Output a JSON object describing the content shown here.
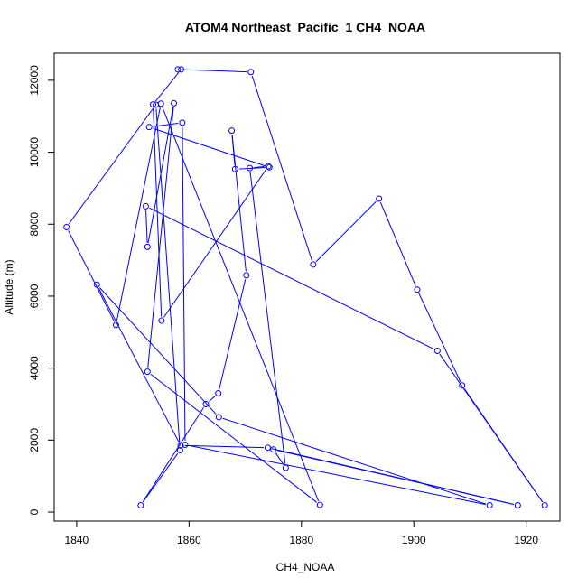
{
  "chart_data": {
    "type": "line",
    "title": "ATOM4 Northeast_Pacific_1 CH4_NOAA",
    "xlabel": "CH4_NOAA",
    "ylabel": "Altitude (m)",
    "xlim": [
      1836,
      1926
    ],
    "ylim": [
      -250,
      12750
    ],
    "x_ticks": [
      1840,
      1860,
      1880,
      1900,
      1920
    ],
    "y_ticks": [
      0,
      2000,
      4000,
      6000,
      8000,
      10000,
      12000
    ],
    "grid": false,
    "legend": "none",
    "series_color": "#0000ff",
    "marker": "open-circle",
    "series": [
      {
        "x": [
          1858.0,
          1871.0,
          1882.1,
          1893.8,
          1900.6,
          1908.6,
          1923.3,
          1904.2,
          1852.3,
          1852.6,
          1857.3,
          1852.6,
          1883.3,
          1855.0,
          1847.0,
          1838.2,
          1854.1,
          1858.4,
          1851.4,
          1863.0,
          1865.2,
          1870.2,
          1867.6,
          1868.2,
          1874.3,
          1852.9,
          1858.8,
          1859.3,
          1913.5,
          1865.3,
          1843.6,
          1858.5,
          1874.0,
          1918.5,
          1875.0,
          1877.2,
          1870.8,
          1874.1,
          1855.1,
          1853.6,
          1858.6
        ],
        "y": [
          12300,
          12230,
          6880,
          8710,
          6180,
          3520,
          190,
          4480,
          8500,
          7370,
          11360,
          3900,
          200,
          11350,
          5200,
          7920,
          11320,
          1720,
          190,
          3000,
          3300,
          6580,
          10600,
          9530,
          9580,
          10700,
          10820,
          1870,
          190,
          2640,
          6320,
          1850,
          1790,
          190,
          1740,
          1230,
          9560,
          9610,
          5320,
          11330,
          12300
        ]
      }
    ]
  }
}
